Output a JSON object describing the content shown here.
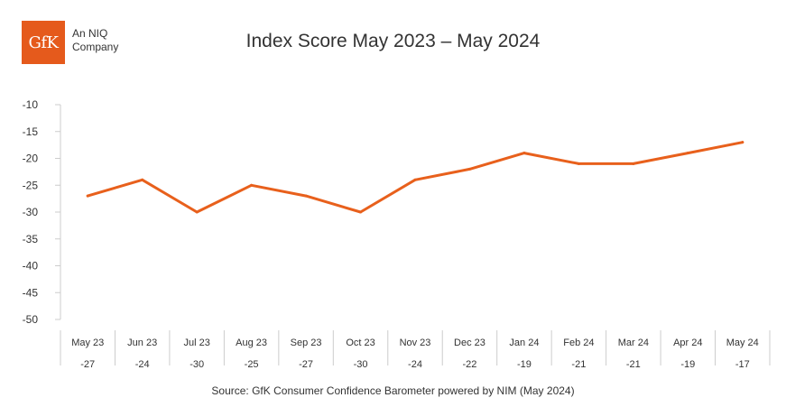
{
  "header": {
    "logo_text": "GfK",
    "tagline_line1": "An NIQ",
    "tagline_line2": "Company"
  },
  "colors": {
    "brand": "#E55A1C",
    "line": "#E8601C",
    "axis": "#CCCCCC",
    "text": "#333333"
  },
  "chart_data": {
    "type": "line",
    "title": "Index Score May 2023 – May 2024",
    "xlabel": "",
    "ylabel": "",
    "ylim": [
      -50,
      -10
    ],
    "yticks": [
      -10,
      -15,
      -20,
      -25,
      -30,
      -35,
      -40,
      -45,
      -50
    ],
    "categories": [
      "May 23",
      "Jun 23",
      "Jul 23",
      "Aug 23",
      "Sep 23",
      "Oct 23",
      "Nov 23",
      "Dec 23",
      "Jan 24",
      "Feb 24",
      "Mar 24",
      "Apr 24",
      "May 24"
    ],
    "series": [
      {
        "values": [
          -27,
          -24,
          -30,
          -25,
          -27,
          -30,
          -24,
          -22,
          -19,
          -21,
          -21,
          -19,
          -17
        ]
      }
    ],
    "data_table": [
      "-27",
      "-24",
      "-30",
      "-25",
      "-27",
      "-30",
      "-24",
      "-22",
      "-19",
      "-21",
      "-21",
      "-19",
      "-17"
    ],
    "grid": false,
    "legend": "none"
  },
  "footer": {
    "source": "Source: GfK Consumer Confidence Barometer powered by NIM (May 2024)"
  }
}
